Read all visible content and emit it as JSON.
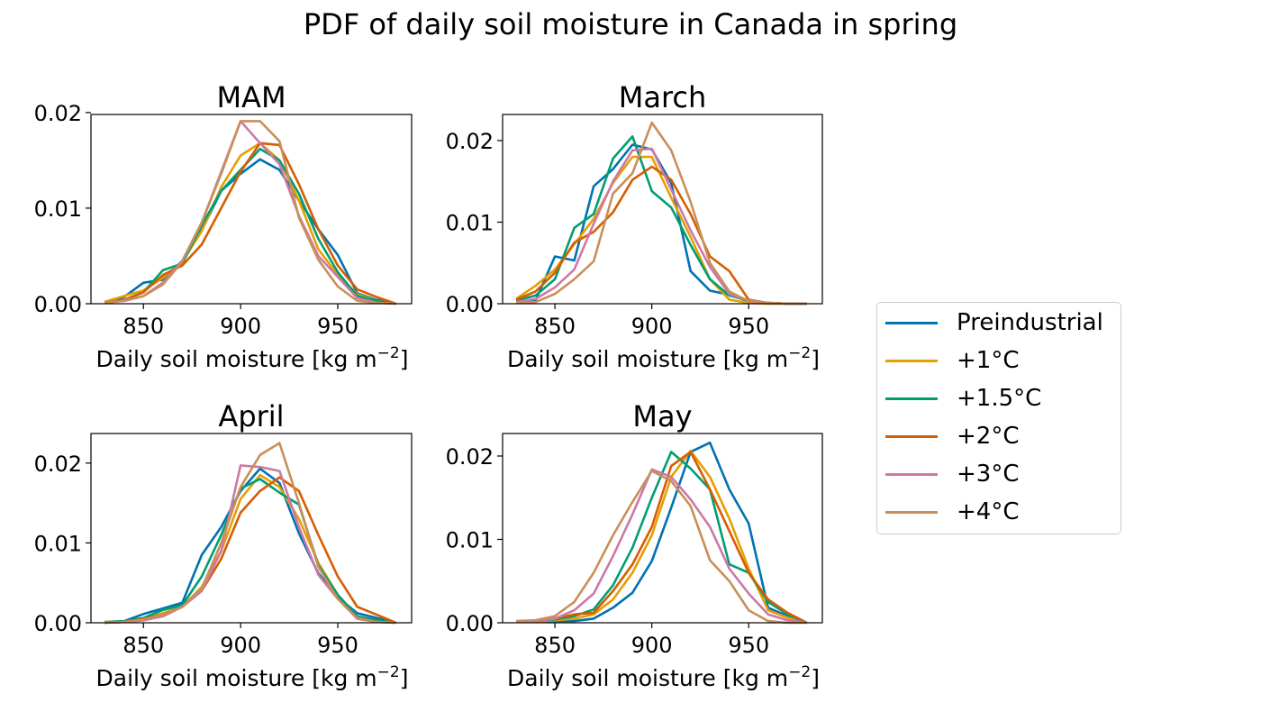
{
  "title": "PDF of daily soil moisture in Canada in spring",
  "legend": [
    {
      "label": "Preindustrial",
      "color": "#0072b2"
    },
    {
      "label": "+1°C",
      "color": "#e69f00"
    },
    {
      "label": "+1.5°C",
      "color": "#009e73"
    },
    {
      "label": "+2°C",
      "color": "#d55e00"
    },
    {
      "label": "+3°C",
      "color": "#cc79a7"
    },
    {
      "label": "+4°C",
      "color": "#c98f5a"
    }
  ],
  "chart_data": [
    {
      "type": "line",
      "title": "MAM",
      "xlabel": "Daily soil moisture [kg m",
      "xlabel_sup": "−2",
      "xlabel_end": "]",
      "xlim": [
        823,
        988
      ],
      "ylim": [
        0,
        0.0198
      ],
      "xticks": [
        850,
        900,
        950
      ],
      "xtick_labels": [
        "850",
        "900",
        "950"
      ],
      "yticks": [
        0,
        0.01,
        0.02
      ],
      "ytick_labels": [
        "0.00",
        "0.01",
        "0.02"
      ],
      "x": [
        830,
        840,
        850,
        860,
        870,
        880,
        890,
        900,
        910,
        920,
        930,
        940,
        950,
        960,
        970,
        980
      ],
      "series": [
        {
          "name": "Preindustrial",
          "values": [
            0.0001,
            0.0007,
            0.0022,
            0.0025,
            0.0045,
            0.0077,
            0.0118,
            0.0136,
            0.0151,
            0.014,
            0.0108,
            0.0078,
            0.0051,
            0.0011,
            0.0004,
            0.0
          ]
        },
        {
          "name": "+1°C",
          "values": [
            0.0002,
            0.0008,
            0.0014,
            0.0027,
            0.0044,
            0.0076,
            0.0122,
            0.0155,
            0.0168,
            0.015,
            0.0108,
            0.0057,
            0.003,
            0.001,
            0.0003,
            0.0
          ]
        },
        {
          "name": "+1.5°C",
          "values": [
            0.0001,
            0.0004,
            0.0012,
            0.0035,
            0.0042,
            0.0082,
            0.0118,
            0.014,
            0.0162,
            0.015,
            0.0115,
            0.0068,
            0.0033,
            0.0008,
            0.0003,
            0.0
          ]
        },
        {
          "name": "+2°C",
          "values": [
            0.0001,
            0.0004,
            0.0012,
            0.003,
            0.004,
            0.0062,
            0.01,
            0.0138,
            0.0168,
            0.0166,
            0.0125,
            0.0078,
            0.004,
            0.0015,
            0.0007,
            0.0
          ]
        },
        {
          "name": "+3°C",
          "values": [
            0.0001,
            0.0003,
            0.0008,
            0.0022,
            0.0045,
            0.0085,
            0.0138,
            0.0191,
            0.0168,
            0.0146,
            0.0092,
            0.005,
            0.0028,
            0.0006,
            0.0001,
            0.0
          ]
        },
        {
          "name": "+4°C",
          "values": [
            0.0001,
            0.0003,
            0.0008,
            0.002,
            0.0044,
            0.0085,
            0.0136,
            0.0191,
            0.0191,
            0.017,
            0.009,
            0.0046,
            0.0018,
            0.0003,
            0.0001,
            0.0
          ]
        }
      ]
    },
    {
      "type": "line",
      "title": "March",
      "xlabel": "Daily soil moisture [kg m",
      "xlabel_sup": "−2",
      "xlabel_end": "]",
      "xlim": [
        823,
        988
      ],
      "ylim": [
        0,
        0.0232
      ],
      "xticks": [
        850,
        900,
        950
      ],
      "xtick_labels": [
        "850",
        "900",
        "950"
      ],
      "yticks": [
        0,
        0.01,
        0.02
      ],
      "ytick_labels": [
        "0.00",
        "0.01",
        "0.02"
      ],
      "x": [
        830,
        840,
        850,
        860,
        870,
        880,
        890,
        900,
        910,
        920,
        930,
        940,
        950,
        960,
        970,
        980
      ],
      "series": [
        {
          "name": "Preindustrial",
          "values": [
            0.0003,
            0.0004,
            0.0058,
            0.0053,
            0.0144,
            0.0165,
            0.0195,
            0.0189,
            0.0148,
            0.004,
            0.0016,
            0.0011,
            0.0003,
            0.0001,
            0.0,
            0.0
          ]
        },
        {
          "name": "+1°C",
          "values": [
            0.0006,
            0.0022,
            0.0042,
            0.0073,
            0.0104,
            0.0148,
            0.018,
            0.018,
            0.013,
            0.0082,
            0.003,
            0.0005,
            0.0001,
            0.0,
            0.0,
            0.0
          ]
        },
        {
          "name": "+1.5°C",
          "values": [
            0.0004,
            0.001,
            0.003,
            0.0093,
            0.011,
            0.0178,
            0.0205,
            0.0138,
            0.0118,
            0.0072,
            0.003,
            0.001,
            0.0004,
            0.0001,
            0.0,
            0.0
          ]
        },
        {
          "name": "+2°C",
          "values": [
            0.0005,
            0.0015,
            0.0038,
            0.0075,
            0.0088,
            0.0112,
            0.0152,
            0.0168,
            0.0152,
            0.011,
            0.0058,
            0.004,
            0.0005,
            0.0001,
            0.0,
            0.0
          ]
        },
        {
          "name": "+3°C",
          "values": [
            0.0002,
            0.0006,
            0.002,
            0.0042,
            0.0098,
            0.015,
            0.0188,
            0.019,
            0.014,
            0.009,
            0.0045,
            0.0012,
            0.0004,
            0.0001,
            0.0,
            0.0
          ]
        },
        {
          "name": "+4°C",
          "values": [
            0.0001,
            0.0002,
            0.0012,
            0.003,
            0.0052,
            0.0135,
            0.016,
            0.0222,
            0.0188,
            0.0125,
            0.005,
            0.0015,
            0.0003,
            0.0001,
            0.0,
            0.0
          ]
        }
      ]
    },
    {
      "type": "line",
      "title": "April",
      "xlabel": "Daily soil moisture [kg m",
      "xlabel_sup": "−2",
      "xlabel_end": "]",
      "xlim": [
        823,
        988
      ],
      "ylim": [
        0,
        0.0237
      ],
      "xticks": [
        850,
        900,
        950
      ],
      "xtick_labels": [
        "850",
        "900",
        "950"
      ],
      "yticks": [
        0,
        0.01,
        0.02
      ],
      "ytick_labels": [
        "0.00",
        "0.01",
        "0.02"
      ],
      "x": [
        830,
        840,
        850,
        860,
        870,
        880,
        890,
        900,
        910,
        920,
        930,
        940,
        950,
        960,
        970,
        980
      ],
      "series": [
        {
          "name": "Preindustrial",
          "values": [
            0.0001,
            0.0002,
            0.0011,
            0.0018,
            0.0025,
            0.0085,
            0.012,
            0.0165,
            0.0193,
            0.0175,
            0.0112,
            0.0062,
            0.0032,
            0.0012,
            0.0006,
            0.0
          ]
        },
        {
          "name": "+1°C",
          "values": [
            0.0001,
            0.0001,
            0.0005,
            0.0012,
            0.002,
            0.0045,
            0.009,
            0.0155,
            0.0185,
            0.017,
            0.013,
            0.0075,
            0.0035,
            0.0008,
            0.0003,
            0.0
          ]
        },
        {
          "name": "+1.5°C",
          "values": [
            0.0,
            0.0002,
            0.0006,
            0.0016,
            0.0022,
            0.0058,
            0.011,
            0.0168,
            0.018,
            0.0163,
            0.0148,
            0.0072,
            0.0035,
            0.0008,
            0.0003,
            0.0
          ]
        },
        {
          "name": "+2°C",
          "values": [
            0.0,
            0.0001,
            0.0005,
            0.001,
            0.002,
            0.004,
            0.008,
            0.0138,
            0.0165,
            0.0182,
            0.0165,
            0.011,
            0.0058,
            0.002,
            0.001,
            0.0
          ]
        },
        {
          "name": "+3°C",
          "values": [
            0.0,
            0.0001,
            0.0003,
            0.0008,
            0.002,
            0.004,
            0.009,
            0.0197,
            0.0195,
            0.019,
            0.012,
            0.006,
            0.003,
            0.0005,
            0.0001,
            0.0
          ]
        },
        {
          "name": "+4°C",
          "values": [
            0.0,
            0.0001,
            0.0004,
            0.001,
            0.002,
            0.0043,
            0.01,
            0.017,
            0.021,
            0.0225,
            0.015,
            0.007,
            0.003,
            0.0006,
            0.0001,
            0.0
          ]
        }
      ]
    },
    {
      "type": "line",
      "title": "May",
      "xlabel": "Daily soil moisture [kg m",
      "xlabel_sup": "−2",
      "xlabel_end": "]",
      "xlim": [
        823,
        988
      ],
      "ylim": [
        0,
        0.0227
      ],
      "xticks": [
        850,
        900,
        950
      ],
      "xtick_labels": [
        "850",
        "900",
        "950"
      ],
      "yticks": [
        0,
        0.01,
        0.02
      ],
      "ytick_labels": [
        "0.00",
        "0.01",
        "0.02"
      ],
      "x": [
        830,
        840,
        850,
        860,
        870,
        880,
        890,
        900,
        910,
        920,
        930,
        940,
        950,
        960,
        970,
        980
      ],
      "series": [
        {
          "name": "Preindustrial",
          "values": [
            0.0001,
            0.0001,
            0.0002,
            0.0002,
            0.0005,
            0.0018,
            0.0036,
            0.0074,
            0.0138,
            0.0205,
            0.0216,
            0.016,
            0.0119,
            0.0018,
            0.0008,
            0.0
          ]
        },
        {
          "name": "+1°C",
          "values": [
            0.0001,
            0.0001,
            0.0003,
            0.0005,
            0.001,
            0.0028,
            0.006,
            0.0105,
            0.0175,
            0.0206,
            0.0175,
            0.0125,
            0.0065,
            0.0015,
            0.0006,
            0.0
          ]
        },
        {
          "name": "+1.5°C",
          "values": [
            0.0001,
            0.0002,
            0.0004,
            0.0008,
            0.0016,
            0.0045,
            0.009,
            0.015,
            0.0205,
            0.0185,
            0.016,
            0.007,
            0.006,
            0.0025,
            0.001,
            0.0
          ]
        },
        {
          "name": "+2°C",
          "values": [
            0.0001,
            0.0002,
            0.0005,
            0.001,
            0.0012,
            0.0038,
            0.007,
            0.0115,
            0.0188,
            0.0205,
            0.016,
            0.011,
            0.006,
            0.0028,
            0.0012,
            0.0
          ]
        },
        {
          "name": "+3°C",
          "values": [
            0.0001,
            0.0002,
            0.0005,
            0.0015,
            0.0035,
            0.008,
            0.013,
            0.0184,
            0.0175,
            0.0148,
            0.0115,
            0.0065,
            0.0035,
            0.001,
            0.0003,
            0.0
          ]
        },
        {
          "name": "+4°C",
          "values": [
            0.0002,
            0.0003,
            0.0008,
            0.0025,
            0.006,
            0.0105,
            0.0145,
            0.0182,
            0.017,
            0.014,
            0.0075,
            0.005,
            0.0015,
            0.0002,
            0.0,
            0.0
          ]
        }
      ]
    }
  ]
}
